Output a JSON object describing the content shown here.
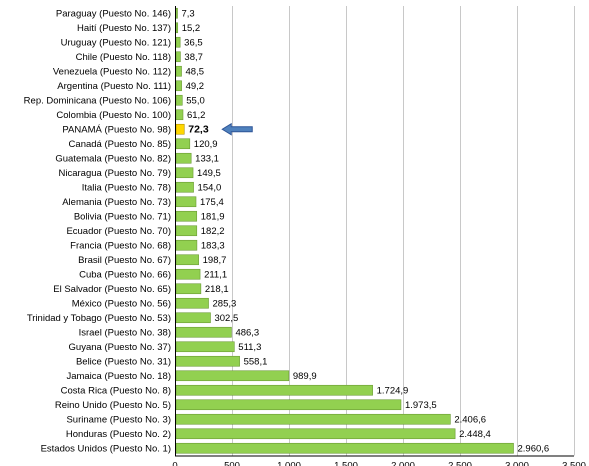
{
  "chart_data": {
    "type": "bar",
    "orientation": "horizontal",
    "categories": [
      "Paraguay (Puesto No. 146)",
      "Haití (Puesto No. 137)",
      "Uruguay (Puesto No. 121)",
      "Chile (Puesto No. 118)",
      "Venezuela (Puesto No. 112)",
      "Argentina (Puesto No. 111)",
      "Rep. Dominicana (Puesto No. 106)",
      "Colombia (Puesto No. 100)",
      "PANAMÁ (Puesto No. 98)",
      "Canadá (Puesto No. 85)",
      "Guatemala (Puesto No. 82)",
      "Nicaragua (Puesto No. 79)",
      "Italia (Puesto No. 78)",
      "Alemania (Puesto No. 73)",
      "Bolivia (Puesto No. 71)",
      "Ecuador (Puesto No. 70)",
      "Francia (Puesto No. 68)",
      "Brasil (Puesto No. 67)",
      "Cuba (Puesto No. 66)",
      "El Salvador (Puesto No. 65)",
      "México (Puesto No. 56)",
      "Trinidad y Tobago (Puesto No. 53)",
      "Israel (Puesto No. 38)",
      "Guyana (Puesto No. 37)",
      "Belice (Puesto No. 31)",
      "Jamaica (Puesto No. 18)",
      "Costa Rica (Puesto No. 8)",
      "Reino Unido (Puesto No. 5)",
      "Suriname (Puesto No. 3)",
      "Honduras (Puesto No. 2)",
      "Estados Unidos (Puesto No. 1)"
    ],
    "values": [
      7.3,
      15.2,
      36.5,
      38.7,
      48.5,
      49.2,
      55.0,
      61.2,
      72.3,
      120.9,
      133.1,
      149.5,
      154.0,
      175.4,
      181.9,
      182.2,
      183.3,
      198.7,
      211.1,
      218.1,
      285.3,
      302.5,
      486.3,
      511.3,
      558.1,
      989.9,
      1724.9,
      1973.5,
      2406.6,
      2448.4,
      2960.6
    ],
    "value_labels": [
      "7,3",
      "15,2",
      "36,5",
      "38,7",
      "48,5",
      "49,2",
      "55,0",
      "61,2",
      "72,3",
      "120,9",
      "133,1",
      "149,5",
      "154,0",
      "175,4",
      "181,9",
      "182,2",
      "183,3",
      "198,7",
      "211,1",
      "218,1",
      "285,3",
      "302,5",
      "486,3",
      "511,3",
      "558,1",
      "989,9",
      "1.724,9",
      "1.973,5",
      "2.406,6",
      "2.448,4",
      "2.960,6"
    ],
    "highlight": "PANAMÁ (Puesto No. 98)",
    "xlim": [
      0,
      3500
    ],
    "xticks": [
      0,
      500,
      1000,
      1500,
      2000,
      2500,
      3000,
      3500
    ],
    "xtick_labels": [
      "0",
      "500",
      "1.000",
      "1.500",
      "2.000",
      "2.500",
      "3.000",
      "3.500"
    ],
    "grid": true,
    "colors": {
      "bar": "#92d050",
      "bar_border": "#6a9a34",
      "highlight": "#ffd700",
      "highlight_border": "#b08f00",
      "arrow": "#2e5597"
    }
  }
}
